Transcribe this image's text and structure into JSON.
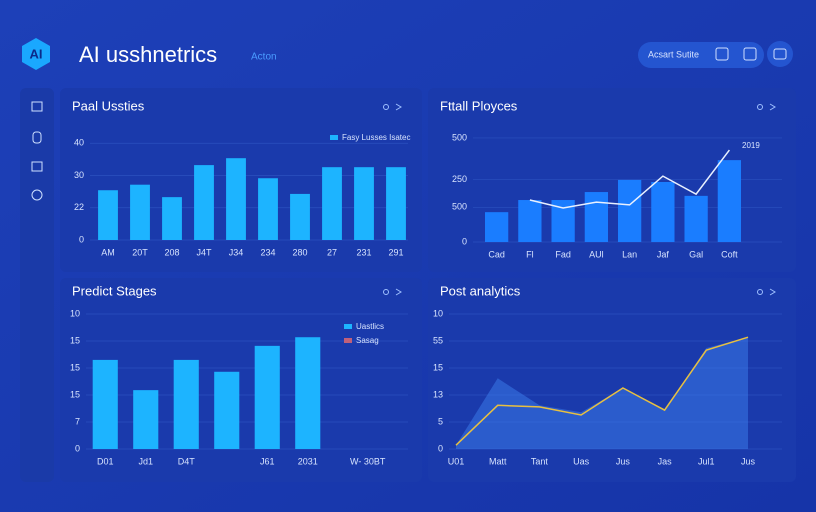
{
  "header": {
    "logo": "AI",
    "title": "AI usshnetrics",
    "subtitle": "Acton",
    "button": "Acsart Sutite"
  },
  "chart_data": [
    {
      "type": "bar",
      "title": "Paal Ussties",
      "categories": [
        "AM",
        "20T",
        "208",
        "J4T",
        "J34",
        "234",
        "280",
        "27",
        "231",
        "291"
      ],
      "values": [
        21.6,
        24,
        18.6,
        32.5,
        35.5,
        26.8,
        20,
        31.6,
        31.6,
        31.6
      ],
      "color": "#1db4ff",
      "ylim": [
        0,
        46
      ],
      "yticks": [
        0,
        {
          "value": 14,
          "label": "22"
        },
        {
          "value": 28,
          "label": "30"
        },
        {
          "value": 42,
          "label": "40"
        }
      ],
      "grid": true,
      "legend": [
        {
          "label": "Fasy Lusses Isatec",
          "color": "#1db4ff"
        }
      ]
    },
    {
      "type": "combo",
      "title": "Fttall Ployces",
      "categories": [
        "Cad",
        "Fl",
        "Fad",
        "AUl",
        "Lan",
        "Jaf",
        "Gal",
        "Coft"
      ],
      "series": [
        {
          "type": "bar",
          "color": "#1a7dff",
          "values": [
            86,
            121,
            121,
            144,
            179,
            173,
            133,
            236
          ]
        },
        {
          "type": "line",
          "color": "#e8f0ff",
          "values": [
            null,
            121,
            98,
            115,
            107,
            190,
            138,
            265
          ]
        }
      ],
      "ylim": [
        0,
        320
      ],
      "yticks": [
        0,
        {
          "value": 100,
          "label": "500"
        },
        {
          "value": 180,
          "label": "250"
        },
        {
          "value": 300,
          "label": "500"
        }
      ],
      "grid": true,
      "annotation": "2019"
    },
    {
      "type": "bar",
      "title": "Predict Stages",
      "categories": [
        "D01",
        "Jd1",
        "D4T",
        null,
        "J61",
        "2031"
      ],
      "values": [
        16.5,
        10.9,
        16.5,
        14.3,
        19.1,
        20.7
      ],
      "color": "#1db4ff",
      "ylim": [
        0,
        25
      ],
      "yticks": [
        {
          "value": 0,
          "label": "0"
        },
        {
          "value": 5,
          "label": "7"
        },
        {
          "value": 10,
          "label": "15"
        },
        15,
        {
          "value": 20,
          "label": "15"
        },
        {
          "value": 25,
          "label": "10"
        }
      ],
      "grid": true,
      "legend": [
        {
          "label": "Uastlics",
          "color": "#1db4ff"
        },
        {
          "label": "Sasag",
          "color": "#c0607a"
        }
      ],
      "x_label": "W- 30BT"
    },
    {
      "type": "area",
      "title": "Post analytics",
      "categories": [
        "U01",
        "Matt",
        "Tant",
        "Uas",
        "Jus",
        "Jas",
        "Jul1",
        "Jus"
      ],
      "series": [
        {
          "type": "area",
          "color": "#3a78e8",
          "values": [
            0.7,
            13.1,
            8.1,
            6.8,
            11.3,
            7.2,
            18.7,
            20.7
          ]
        },
        {
          "type": "line",
          "color": "#e8c040",
          "values": [
            0.7,
            8.1,
            7.8,
            6.3,
            11.3,
            7.2,
            18.3,
            20.7
          ]
        }
      ],
      "ylim": [
        0,
        25
      ],
      "yticks": [
        0,
        5,
        {
          "value": 10,
          "label": "13"
        },
        15,
        {
          "value": 20,
          "label": "55"
        },
        {
          "value": 25,
          "label": "10"
        }
      ],
      "grid": true
    }
  ]
}
